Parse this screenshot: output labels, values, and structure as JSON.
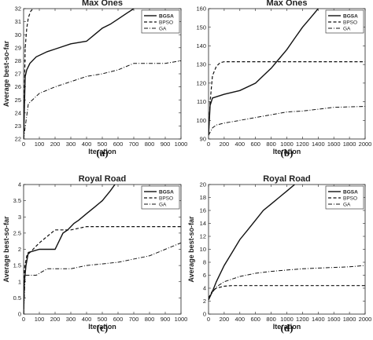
{
  "chart_data": [
    {
      "type": "line",
      "title": "Max Ones",
      "caption": "(a)",
      "xlabel": "Iteration",
      "ylabel": "Average best-so-far",
      "xlim": [
        0,
        1000
      ],
      "ylim": [
        22,
        32
      ],
      "xticks": [
        0,
        100,
        200,
        300,
        400,
        500,
        600,
        700,
        800,
        900,
        1000
      ],
      "yticks": [
        22,
        23,
        24,
        25,
        26,
        27,
        28,
        29,
        30,
        31,
        32
      ],
      "legend_position": "top-right",
      "series": [
        {
          "name": "BGSA",
          "style": "solid",
          "x": [
            0,
            10,
            20,
            40,
            80,
            150,
            200,
            300,
            400,
            450,
            500,
            550,
            600,
            650,
            700
          ],
          "y": [
            22,
            26.8,
            27.3,
            27.8,
            28.3,
            28.7,
            28.9,
            29.3,
            29.5,
            30.0,
            30.5,
            30.8,
            31.2,
            31.6,
            32
          ]
        },
        {
          "name": "BPSO",
          "style": "dashed",
          "x": [
            0,
            10,
            20,
            30,
            45,
            60
          ],
          "y": [
            22,
            29.0,
            30.5,
            31.3,
            31.8,
            32
          ]
        },
        {
          "name": "GA",
          "style": "dashdot",
          "x": [
            0,
            30,
            100,
            200,
            300,
            400,
            500,
            600,
            700,
            800,
            900,
            1000
          ],
          "y": [
            22,
            24.7,
            25.5,
            26.0,
            26.4,
            26.8,
            27.0,
            27.3,
            27.8,
            27.8,
            27.8,
            28.0
          ]
        }
      ]
    },
    {
      "type": "line",
      "title": "Max Ones",
      "caption": "(b)",
      "xlabel": "Iteration",
      "ylabel": "",
      "xlim": [
        0,
        2000
      ],
      "ylim": [
        90,
        160
      ],
      "xticks": [
        0,
        200,
        400,
        600,
        800,
        1000,
        1200,
        1400,
        1600,
        1800,
        2000
      ],
      "yticks": [
        90,
        100,
        110,
        120,
        130,
        140,
        150,
        160
      ],
      "legend_position": "top-right",
      "series": [
        {
          "name": "BGSA",
          "style": "solid",
          "x": [
            0,
            20,
            50,
            200,
            400,
            600,
            700,
            800,
            900,
            1000,
            1100,
            1200,
            1300,
            1400
          ],
          "y": [
            92,
            108,
            112,
            114,
            116,
            120,
            124,
            128,
            133,
            138,
            144,
            150,
            155,
            160
          ]
        },
        {
          "name": "BPSO",
          "style": "dashed",
          "x": [
            0,
            20,
            50,
            100,
            150,
            200,
            2000
          ],
          "y": [
            92,
            110,
            124,
            129,
            131,
            131.5,
            131.5
          ]
        },
        {
          "name": "GA",
          "style": "dashdot",
          "x": [
            0,
            50,
            100,
            200,
            400,
            600,
            800,
            1000,
            1200,
            1400,
            1600,
            2000
          ],
          "y": [
            92,
            96,
            97.5,
            98.5,
            100,
            101.5,
            103,
            104.5,
            105,
            106,
            107,
            107.5
          ]
        }
      ]
    },
    {
      "type": "line",
      "title": "Royal Road",
      "caption": "(c)",
      "xlabel": "Iteration",
      "ylabel": "Average best-so-far",
      "xlim": [
        0,
        1000
      ],
      "ylim": [
        0,
        4
      ],
      "xticks": [
        0,
        100,
        200,
        300,
        400,
        500,
        600,
        700,
        800,
        900,
        1000
      ],
      "yticks": [
        0,
        0.5,
        1,
        1.5,
        2,
        2.5,
        3,
        3.5,
        4
      ],
      "legend_position": "top-right",
      "series": [
        {
          "name": "BGSA",
          "style": "solid",
          "x": [
            0,
            5,
            15,
            30,
            100,
            150,
            200,
            250,
            280,
            320,
            350,
            400,
            450,
            500,
            550,
            580
          ],
          "y": [
            0,
            1.0,
            1.5,
            1.9,
            2.0,
            2.0,
            2.0,
            2.5,
            2.6,
            2.8,
            2.9,
            3.1,
            3.3,
            3.5,
            3.8,
            4.0
          ]
        },
        {
          "name": "BPSO",
          "style": "dashed",
          "x": [
            0,
            5,
            20,
            40,
            100,
            200,
            250,
            300,
            400,
            500,
            1000
          ],
          "y": [
            0,
            1.4,
            1.8,
            1.9,
            2.2,
            2.6,
            2.6,
            2.6,
            2.7,
            2.7,
            2.7
          ]
        },
        {
          "name": "GA",
          "style": "dashdot",
          "x": [
            0,
            10,
            80,
            150,
            300,
            400,
            600,
            800,
            900,
            1000
          ],
          "y": [
            0,
            1.2,
            1.2,
            1.4,
            1.4,
            1.5,
            1.6,
            1.8,
            2.0,
            2.2
          ]
        }
      ]
    },
    {
      "type": "line",
      "title": "Royal Road",
      "caption": "(d)",
      "xlabel": "Iteration",
      "ylabel": "Average best-so-far",
      "xlim": [
        0,
        2000
      ],
      "ylim": [
        0,
        20
      ],
      "xticks": [
        0,
        200,
        400,
        600,
        800,
        1000,
        1200,
        1400,
        1600,
        1800,
        2000
      ],
      "yticks": [
        0,
        2,
        4,
        6,
        8,
        10,
        12,
        14,
        16,
        18,
        20
      ],
      "legend_position": "top-right",
      "series": [
        {
          "name": "BGSA",
          "style": "solid",
          "x": [
            0,
            50,
            100,
            200,
            300,
            400,
            500,
            600,
            700,
            800,
            900,
            1000,
            1100
          ],
          "y": [
            2.2,
            3.5,
            5,
            7.5,
            9.5,
            11.5,
            13,
            14.5,
            16,
            17,
            18,
            19,
            20
          ]
        },
        {
          "name": "BPSO",
          "style": "dashed",
          "x": [
            0,
            50,
            100,
            200,
            300,
            2000
          ],
          "y": [
            2.5,
            3.6,
            4.0,
            4.3,
            4.4,
            4.4
          ]
        },
        {
          "name": "GA",
          "style": "dashdot",
          "x": [
            0,
            100,
            200,
            400,
            600,
            800,
            1000,
            1200,
            1400,
            1600,
            1800,
            2000
          ],
          "y": [
            2.5,
            4.2,
            5.0,
            5.8,
            6.3,
            6.6,
            6.8,
            7.0,
            7.1,
            7.2,
            7.3,
            7.5
          ]
        }
      ]
    }
  ]
}
